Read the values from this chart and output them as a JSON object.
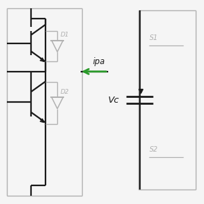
{
  "bg_color": "#f5f5f5",
  "light_gray": "#b0b0b0",
  "dark_color": "#1a1a1a",
  "green_color": "#2a9a2a",
  "fig_width": 2.96,
  "fig_height": 2.96,
  "dpi": 100,
  "label_ipa": "ipa",
  "label_vc": "Vc",
  "label_d1": "D1",
  "label_d2": "D2",
  "label_s1": "S1",
  "label_s2": "S2"
}
